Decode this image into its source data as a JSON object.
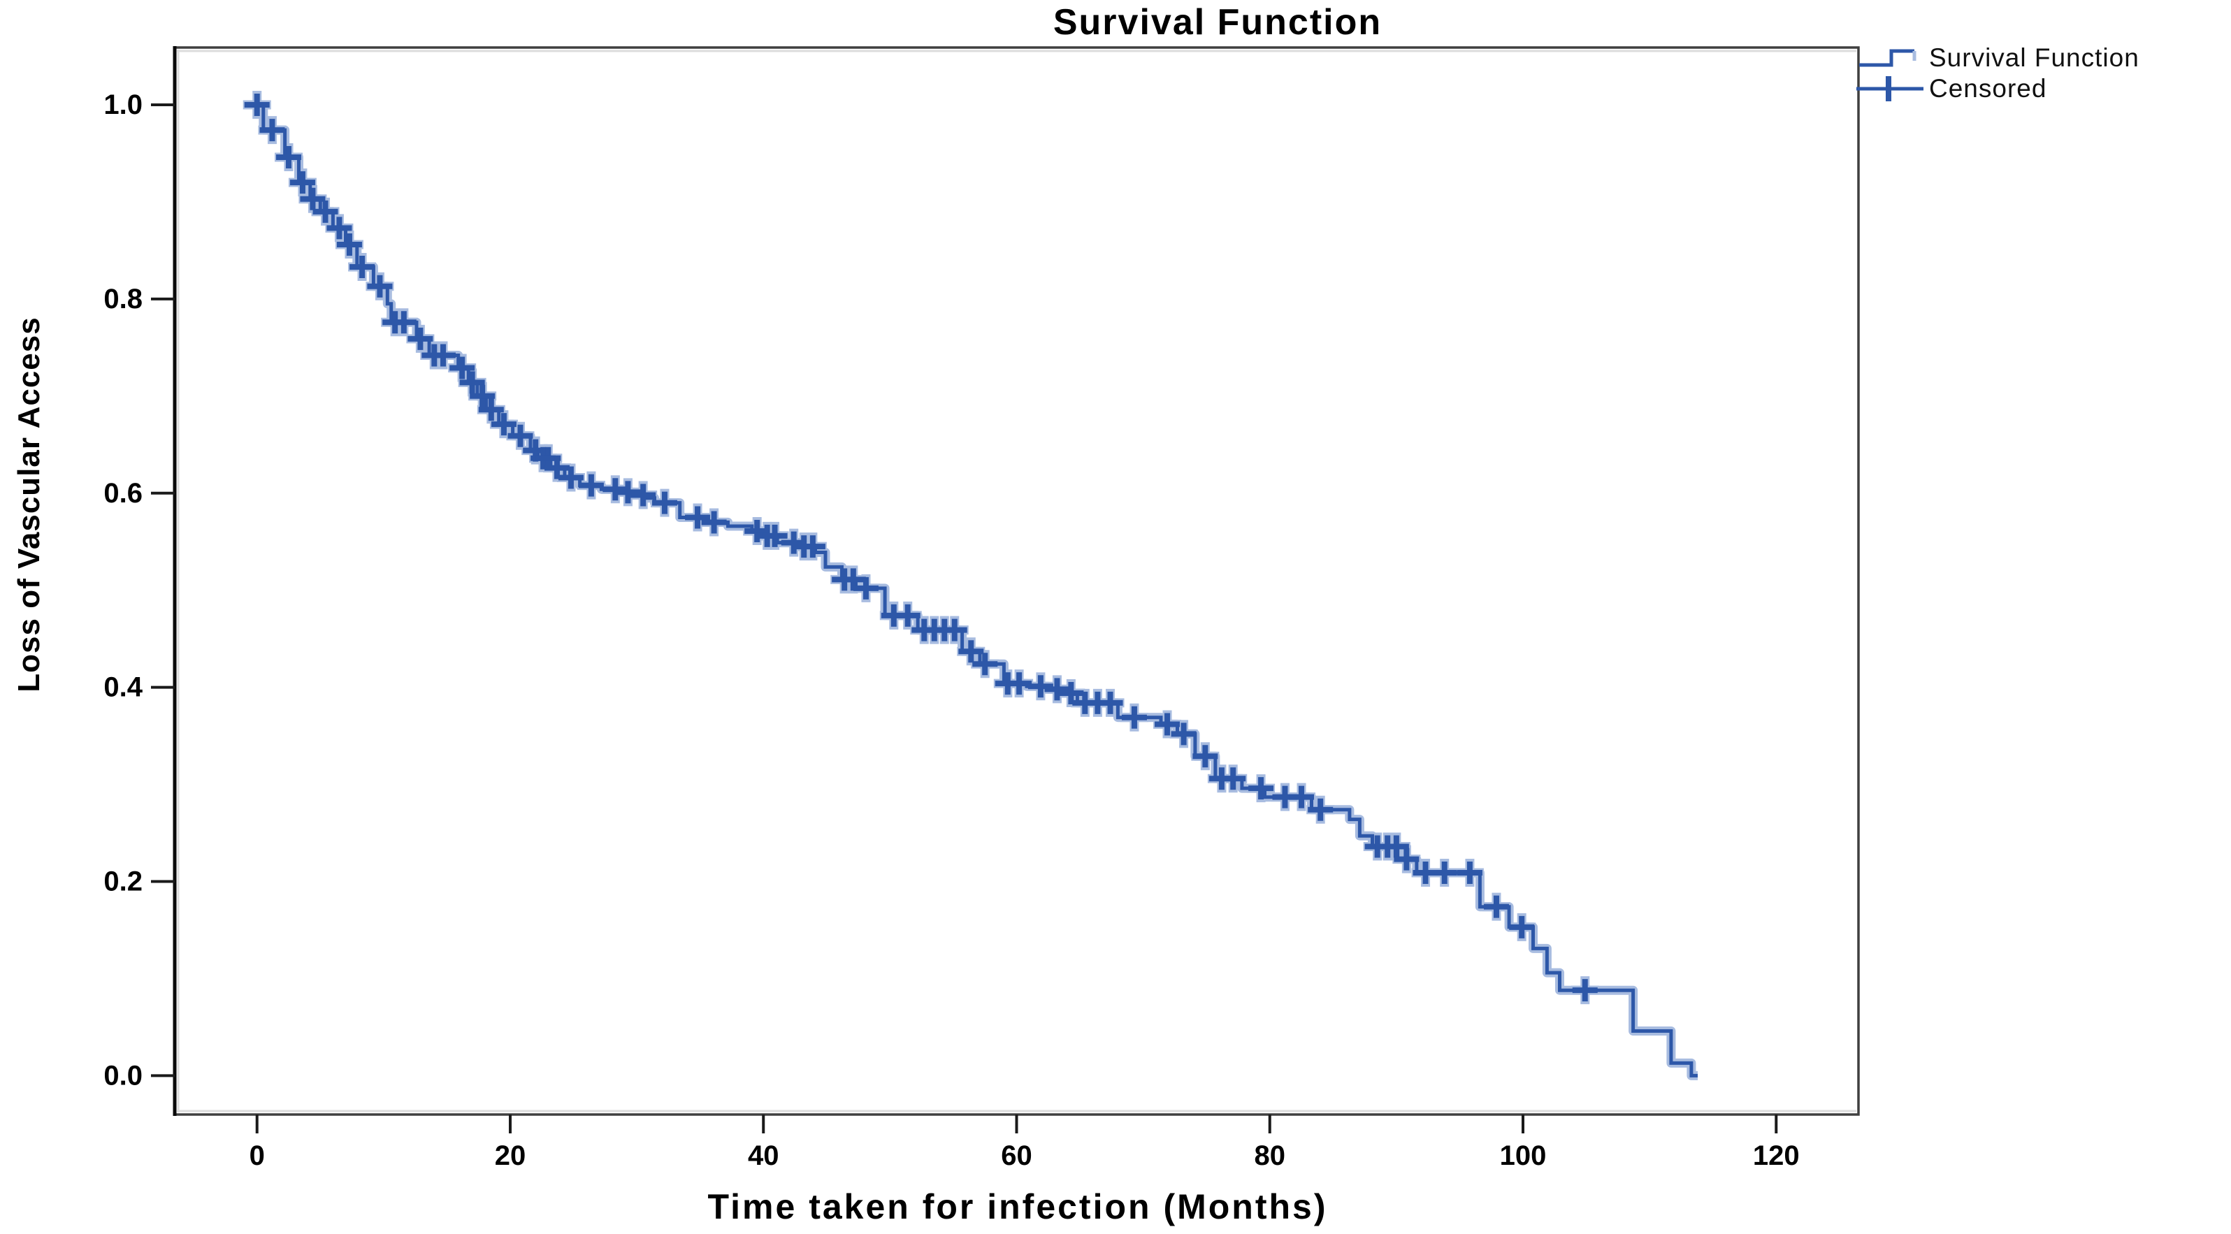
{
  "chart_data": {
    "type": "line",
    "subtype": "kaplan_meier_step",
    "title": "Survival Function",
    "xlabel": "Time taken for infection (Months)",
    "ylabel": "Loss of Vascular Access",
    "xlim": [
      -6.5,
      126.5
    ],
    "ylim": [
      -0.04,
      1.059
    ],
    "xticks": [
      0,
      20,
      40,
      60,
      80,
      100,
      120
    ],
    "yticks": [
      0.0,
      0.2,
      0.4,
      0.6,
      0.8,
      1.0
    ],
    "grid": false,
    "legend": {
      "position": "top-right-outside",
      "entries": [
        {
          "label": "Survival Function",
          "marker": "step-line"
        },
        {
          "label": "Censored",
          "marker": "plus-line"
        }
      ]
    },
    "colors": {
      "line": "#2d57a8",
      "halo": "#a8bce0",
      "frame": "#3f3f3f",
      "y_axis": "#0a0a0a",
      "tick": "#1a1a1a",
      "text": "#000000",
      "inner_shadow": "#dcdcdc",
      "background": "#ffffff"
    },
    "series": [
      {
        "name": "Survival Function",
        "type": "step",
        "points": [
          [
            -0.9,
            1.0
          ],
          [
            0.5,
            0.974
          ],
          [
            2.2,
            0.946
          ],
          [
            3.3,
            0.92
          ],
          [
            4.2,
            0.903
          ],
          [
            5.0,
            0.89
          ],
          [
            6.0,
            0.873
          ],
          [
            7.0,
            0.856
          ],
          [
            7.9,
            0.833
          ],
          [
            9.2,
            0.813
          ],
          [
            10.3,
            0.795
          ],
          [
            10.6,
            0.776
          ],
          [
            12.6,
            0.759
          ],
          [
            13.6,
            0.742
          ],
          [
            15.9,
            0.729
          ],
          [
            16.7,
            0.714
          ],
          [
            17.4,
            0.7
          ],
          [
            18.1,
            0.686
          ],
          [
            19.1,
            0.671
          ],
          [
            20.2,
            0.659
          ],
          [
            21.6,
            0.644
          ],
          [
            22.2,
            0.636
          ],
          [
            23.2,
            0.626
          ],
          [
            24.3,
            0.616
          ],
          [
            25.5,
            0.608
          ],
          [
            27.2,
            0.604
          ],
          [
            28.8,
            0.601
          ],
          [
            29.8,
            0.598
          ],
          [
            30.7,
            0.595
          ],
          [
            31.4,
            0.59
          ],
          [
            33.4,
            0.575
          ],
          [
            35.3,
            0.57
          ],
          [
            37.2,
            0.566
          ],
          [
            39.1,
            0.561
          ],
          [
            40.1,
            0.556
          ],
          [
            41.1,
            0.549
          ],
          [
            43.0,
            0.545
          ],
          [
            44.1,
            0.539
          ],
          [
            44.9,
            0.524
          ],
          [
            46.2,
            0.511
          ],
          [
            47.3,
            0.502
          ],
          [
            49.6,
            0.474
          ],
          [
            52.2,
            0.459
          ],
          [
            55.7,
            0.437
          ],
          [
            57.1,
            0.424
          ],
          [
            59.0,
            0.404
          ],
          [
            60.8,
            0.401
          ],
          [
            62.5,
            0.398
          ],
          [
            63.9,
            0.394
          ],
          [
            64.8,
            0.384
          ],
          [
            68.0,
            0.369
          ],
          [
            71.4,
            0.362
          ],
          [
            72.7,
            0.352
          ],
          [
            74.1,
            0.329
          ],
          [
            75.7,
            0.306
          ],
          [
            77.8,
            0.296
          ],
          [
            79.6,
            0.287
          ],
          [
            83.3,
            0.274
          ],
          [
            86.3,
            0.264
          ],
          [
            87.1,
            0.247
          ],
          [
            88.1,
            0.236
          ],
          [
            90.1,
            0.223
          ],
          [
            91.6,
            0.209
          ],
          [
            96.6,
            0.174
          ],
          [
            98.9,
            0.153
          ],
          [
            100.8,
            0.131
          ],
          [
            101.9,
            0.106
          ],
          [
            102.9,
            0.088
          ],
          [
            108.7,
            0.046
          ],
          [
            111.7,
            0.013
          ],
          [
            113.3,
            0.0
          ]
        ],
        "end_time": 113.8
      }
    ],
    "censored_times": [
      0,
      1.2,
      2.5,
      3.6,
      4.4,
      5.4,
      6.5,
      7.3,
      8.3,
      9.7,
      10.9,
      11.6,
      12.9,
      14.0,
      14.7,
      16.2,
      17.0,
      17.8,
      18.5,
      19.5,
      20.8,
      22.0,
      22.6,
      23.0,
      23.7,
      24.8,
      26.4,
      28.3,
      29.3,
      30.5,
      32.2,
      34.8,
      36.1,
      39.5,
      40.3,
      40.9,
      42.4,
      43.2,
      43.9,
      46.4,
      47.1,
      48.1,
      50.3,
      51.4,
      52.7,
      53.5,
      54.3,
      55.1,
      56.4,
      57.5,
      59.3,
      60.2,
      61.9,
      63.2,
      64.3,
      65.4,
      66.4,
      67.4,
      69.3,
      71.9,
      73.2,
      74.9,
      76.2,
      77.1,
      79.3,
      81.2,
      82.5,
      84.0,
      88.5,
      89.3,
      90.0,
      90.8,
      92.3,
      93.8,
      95.8,
      97.9,
      99.9,
      104.9
    ]
  }
}
